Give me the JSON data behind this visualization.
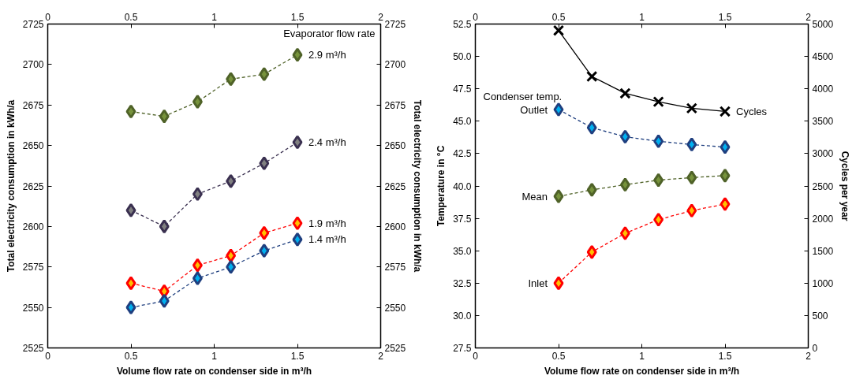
{
  "chart_data": [
    {
      "type": "line",
      "xlabel": "Volume flow rate on condenser side in m³/h",
      "ylabel": "Total electricity consumption in kWh/a",
      "y2label": "Total electricity consumption in kWh/a",
      "x": [
        0.5,
        0.7,
        0.9,
        1.1,
        1.3,
        1.5
      ],
      "xlim": [
        0,
        2
      ],
      "xticks": [
        0,
        0.5,
        1,
        1.5,
        2
      ],
      "x2lim": [
        0,
        2
      ],
      "x2ticks": [
        0,
        0.5,
        1,
        1.5,
        2
      ],
      "ylim": [
        2525,
        2725
      ],
      "yticks": [
        2525,
        2550,
        2575,
        2600,
        2625,
        2650,
        2675,
        2700,
        2725
      ],
      "y2lim": [
        2525,
        2725
      ],
      "y2ticks": [
        2525,
        2550,
        2575,
        2600,
        2625,
        2650,
        2675,
        2700,
        2725
      ],
      "grid": false,
      "marker": "diamond",
      "line_style": "dashed",
      "annotations": [
        "Evaporator flow rate"
      ],
      "series": [
        {
          "name": "2.9 m³/h",
          "color": "#4f6228",
          "values": [
            2671,
            2668,
            2677,
            2691,
            2694,
            2706
          ]
        },
        {
          "name": "2.4 m³/h",
          "color": "#3a3050",
          "values": [
            2610,
            2600,
            2620,
            2628,
            2639,
            2652
          ]
        },
        {
          "name": "1.9 m³/h",
          "color": "#ff0000",
          "values": [
            2565,
            2560,
            2576,
            2582,
            2596,
            2602
          ]
        },
        {
          "name": "1.4 m³/h",
          "color": "#1f3f7f",
          "values": [
            2550,
            2554,
            2568,
            2575,
            2585,
            2592
          ]
        }
      ]
    },
    {
      "type": "line",
      "xlabel": "Volume flow rate on condenser side in m³/h",
      "ylabel": "Temperature in °C",
      "y2label": "Cycles per year",
      "x": [
        0.5,
        0.7,
        0.9,
        1.1,
        1.3,
        1.5
      ],
      "xlim": [
        0,
        2
      ],
      "xticks": [
        0,
        0.5,
        1,
        1.5,
        2
      ],
      "x2lim": [
        0,
        2
      ],
      "x2ticks": [
        0,
        0.5,
        1,
        1.5,
        2
      ],
      "ylim": [
        27.5,
        52.5
      ],
      "yticks": [
        27.5,
        {
          "value": 30,
          "label": "30.0"
        },
        32.5,
        {
          "value": 35,
          "label": "35.0"
        },
        37.5,
        {
          "value": 40,
          "label": "40.0"
        },
        42.5,
        {
          "value": 45,
          "label": "45.0"
        },
        47.5,
        {
          "value": 50,
          "label": "50.0"
        },
        52.5
      ],
      "y2lim": [
        0,
        5000
      ],
      "y2ticks": [
        0,
        500,
        1000,
        1500,
        2000,
        2500,
        3000,
        3500,
        4000,
        4500,
        5000
      ],
      "grid": false,
      "marker": "diamond",
      "line_style": "dashed",
      "annotations": [
        "Condenser temp."
      ],
      "series": [
        {
          "name": "Cycles",
          "color": "#000000",
          "axis": "y2",
          "marker": "cross",
          "line_style": "solid",
          "values": [
            4900,
            4190,
            3930,
            3800,
            3700,
            3650
          ]
        },
        {
          "name": "Outlet",
          "color": "#1f3f7f",
          "values": [
            45.9,
            44.5,
            43.8,
            43.45,
            43.2,
            43.0
          ]
        },
        {
          "name": "Mean",
          "color": "#4f6228",
          "values": [
            39.2,
            39.7,
            40.1,
            40.45,
            40.65,
            40.8
          ]
        },
        {
          "name": "Inlet",
          "color": "#ff0000",
          "values": [
            32.5,
            34.9,
            36.35,
            37.4,
            38.1,
            38.6
          ]
        }
      ]
    }
  ]
}
